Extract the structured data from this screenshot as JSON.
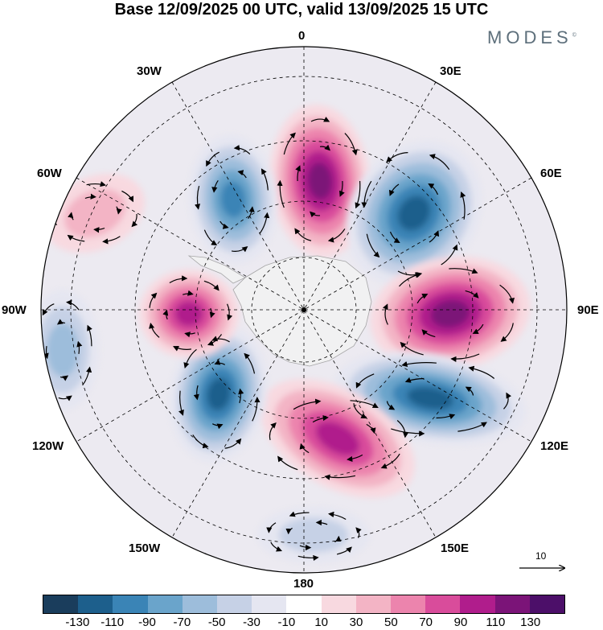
{
  "title": "Base 12/09/2025 00 UTC, valid 13/09/2025 15 UTC",
  "brand": "MODES",
  "brand_mark": "©",
  "longitude_labels": {
    "n0": "0",
    "e30": "30E",
    "e60": "60E",
    "e90": "90E",
    "e120": "120E",
    "e150": "150E",
    "s180": "180",
    "w150": "150W",
    "w120": "120W",
    "w90": "90W",
    "w60": "60W",
    "w30": "30W"
  },
  "reference_vector": {
    "label": "10"
  },
  "colorbar": {
    "ticks": [
      "-130",
      "-110",
      "-90",
      "-70",
      "-50",
      "-30",
      "-10",
      "10",
      "30",
      "50",
      "70",
      "90",
      "110",
      "130"
    ],
    "colors": [
      "#1a3d5c",
      "#1d5f8c",
      "#3a84b6",
      "#6aa4cb",
      "#9dbddb",
      "#c6d1e6",
      "#e5e6f1",
      "#ffffff",
      "#f8d9e0",
      "#f3b4c5",
      "#ec84ad",
      "#d94c9b",
      "#b01d8c",
      "#7b1478",
      "#4c0f69"
    ]
  },
  "chart_data": {
    "type": "heatmap",
    "projection": "south-polar-stereographic",
    "field": "geopotential anomaly with wind vectors",
    "centers": [
      {
        "name": "positive near 10E",
        "value": 130
      },
      {
        "name": "negative near 45E",
        "value": -130
      },
      {
        "name": "positive near 90E",
        "value": 130
      },
      {
        "name": "negative near 120E",
        "value": -130
      },
      {
        "name": "positive near 160E",
        "value": 110
      },
      {
        "name": "negative near 140W",
        "value": -130
      },
      {
        "name": "positive near 90W",
        "value": 110
      },
      {
        "name": "negative near 30W",
        "value": -110
      },
      {
        "name": "negative near 95W (edge)",
        "value": -70
      },
      {
        "name": "positive near 65W (edge)",
        "value": 50
      },
      {
        "name": "negative near 180",
        "value": -50
      }
    ]
  }
}
